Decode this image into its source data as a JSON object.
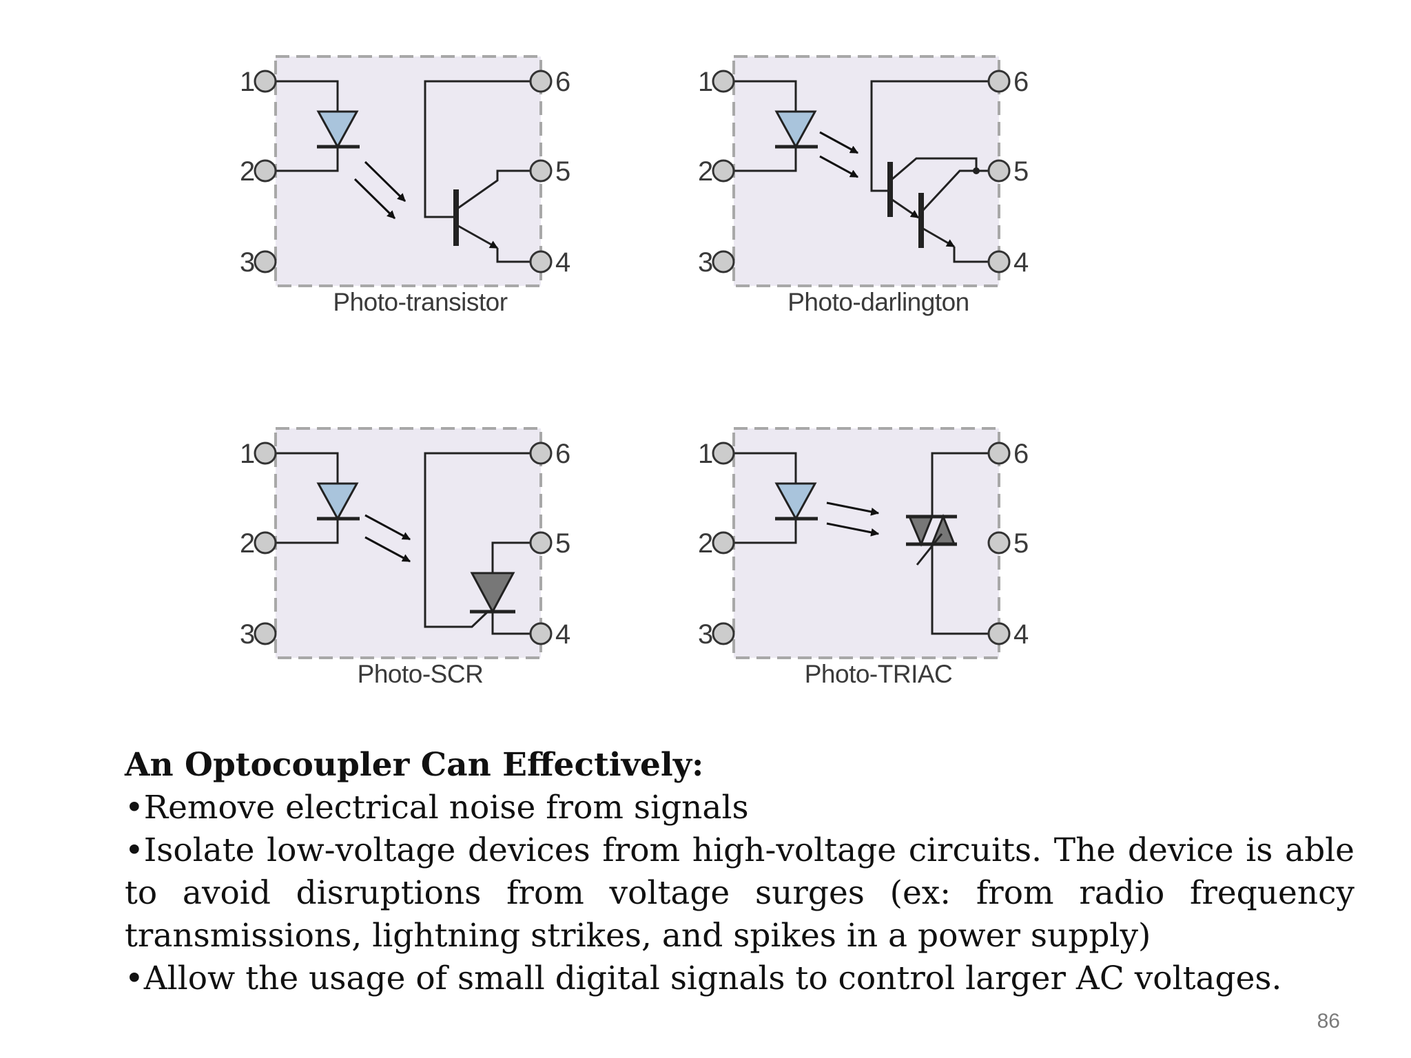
{
  "diagrams": [
    {
      "caption": "Photo-transistor",
      "type": "photo-transistor",
      "pins": {
        "p1": "1",
        "p2": "2",
        "p3": "3",
        "p4": "4",
        "p5": "5",
        "p6": "6"
      }
    },
    {
      "caption": "Photo-darlington",
      "type": "photo-darlington",
      "pins": {
        "p1": "1",
        "p2": "2",
        "p3": "3",
        "p4": "4",
        "p5": "5",
        "p6": "6"
      }
    },
    {
      "caption": "Photo-SCR",
      "type": "photo-scr",
      "pins": {
        "p1": "1",
        "p2": "2",
        "p3": "3",
        "p4": "4",
        "p5": "5",
        "p6": "6"
      }
    },
    {
      "caption": "Photo-TRIAC",
      "type": "photo-triac",
      "pins": {
        "p1": "1",
        "p2": "2",
        "p3": "3",
        "p4": "4",
        "p5": "5",
        "p6": "6"
      }
    }
  ],
  "colors": {
    "led": "#a9c4dc",
    "thyristor": "#777777",
    "box": "#ece9f2",
    "border": "#a8a8a8"
  },
  "text": {
    "heading": "An Optocoupler Can Effectively:",
    "bullets": [
      "•Remove electrical noise from signals",
      "•Isolate low-voltage devices from high-voltage circuits. The device is able to avoid disruptions from voltage surges (ex: from radio frequency transmissions, lightning strikes, and spikes in a power supply)",
      "•Allow the usage of small digital signals to control larger AC voltages."
    ]
  },
  "page_number": "86"
}
